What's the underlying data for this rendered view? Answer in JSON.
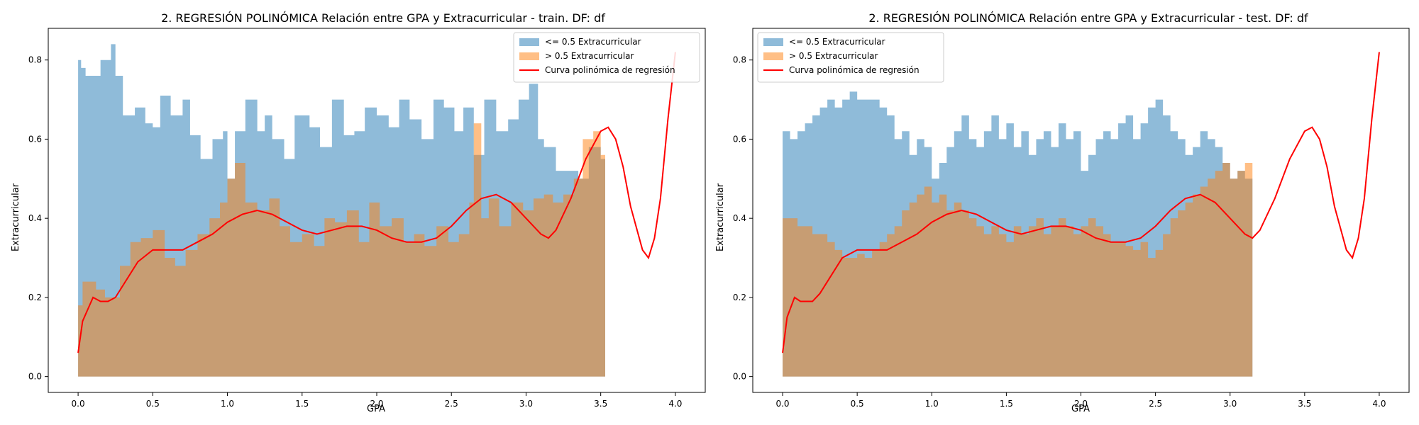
{
  "colors": {
    "low": "#1f77b4",
    "high": "#ff7f0e",
    "curve": "#ff0000",
    "low_alpha": 0.5,
    "high_alpha": 0.5
  },
  "chart_data": [
    {
      "type": "area",
      "title": "2. REGRESIÓN POLINÓMICA Relación entre GPA y Extracurricular - train. DF: df",
      "xlabel": "GPA",
      "ylabel": "Extracurricular",
      "xlim": [
        -0.2,
        4.2
      ],
      "ylim": [
        -0.04,
        0.88
      ],
      "xticks": [
        "0.0",
        "0.5",
        "1.0",
        "1.5",
        "2.0",
        "2.5",
        "3.0",
        "3.5",
        "4.0"
      ],
      "yticks": [
        "0.0",
        "0.2",
        "0.4",
        "0.6",
        "0.8"
      ],
      "grid": false,
      "legend_position": "top-right",
      "legend": [
        "<= 0.5 Extracurricular",
        "> 0.5 Extracurricular",
        "Curva polinómica de regresión"
      ],
      "series": [
        {
          "name": "<= 0.5 Extracurricular",
          "kind": "area",
          "x": [
            0.0,
            0.02,
            0.05,
            0.1,
            0.15,
            0.22,
            0.25,
            0.3,
            0.38,
            0.45,
            0.5,
            0.55,
            0.62,
            0.7,
            0.75,
            0.82,
            0.9,
            0.97,
            1.0,
            1.05,
            1.12,
            1.2,
            1.25,
            1.3,
            1.38,
            1.45,
            1.55,
            1.62,
            1.7,
            1.78,
            1.85,
            1.92,
            2.0,
            2.08,
            2.15,
            2.22,
            2.3,
            2.38,
            2.45,
            2.52,
            2.58,
            2.65,
            2.72,
            2.8,
            2.88,
            2.95,
            3.02,
            3.08,
            3.12,
            3.2,
            3.28,
            3.35,
            3.42,
            3.5,
            3.53
          ],
          "y": [
            0.8,
            0.78,
            0.76,
            0.76,
            0.8,
            0.84,
            0.76,
            0.66,
            0.68,
            0.64,
            0.63,
            0.71,
            0.66,
            0.7,
            0.61,
            0.55,
            0.6,
            0.62,
            0.5,
            0.62,
            0.7,
            0.62,
            0.66,
            0.6,
            0.55,
            0.66,
            0.63,
            0.58,
            0.7,
            0.61,
            0.62,
            0.68,
            0.66,
            0.63,
            0.7,
            0.65,
            0.6,
            0.7,
            0.68,
            0.62,
            0.68,
            0.56,
            0.7,
            0.62,
            0.65,
            0.7,
            0.74,
            0.6,
            0.58,
            0.52,
            0.52,
            0.5,
            0.58,
            0.55,
            0.46
          ]
        },
        {
          "name": "> 0.5 Extracurricular",
          "kind": "area",
          "x": [
            0.0,
            0.03,
            0.06,
            0.12,
            0.18,
            0.22,
            0.28,
            0.35,
            0.42,
            0.5,
            0.58,
            0.65,
            0.72,
            0.8,
            0.88,
            0.95,
            1.0,
            1.05,
            1.12,
            1.2,
            1.28,
            1.35,
            1.42,
            1.5,
            1.58,
            1.65,
            1.72,
            1.8,
            1.88,
            1.95,
            2.02,
            2.1,
            2.18,
            2.25,
            2.32,
            2.4,
            2.48,
            2.55,
            2.62,
            2.65,
            2.7,
            2.75,
            2.82,
            2.9,
            2.98,
            3.05,
            3.12,
            3.18,
            3.25,
            3.32,
            3.38,
            3.45,
            3.5,
            3.53
          ],
          "y": [
            0.18,
            0.24,
            0.24,
            0.22,
            0.2,
            0.2,
            0.28,
            0.34,
            0.35,
            0.37,
            0.3,
            0.28,
            0.32,
            0.36,
            0.4,
            0.44,
            0.5,
            0.54,
            0.44,
            0.42,
            0.45,
            0.38,
            0.34,
            0.36,
            0.33,
            0.4,
            0.39,
            0.42,
            0.34,
            0.44,
            0.38,
            0.4,
            0.34,
            0.36,
            0.33,
            0.38,
            0.34,
            0.36,
            0.44,
            0.64,
            0.4,
            0.45,
            0.38,
            0.44,
            0.42,
            0.45,
            0.46,
            0.44,
            0.46,
            0.5,
            0.6,
            0.62,
            0.56,
            0.56
          ]
        },
        {
          "name": "Curva polinómica de regresión",
          "kind": "line",
          "x": [
            0.0,
            0.03,
            0.1,
            0.15,
            0.2,
            0.25,
            0.3,
            0.4,
            0.5,
            0.6,
            0.7,
            0.8,
            0.9,
            1.0,
            1.1,
            1.2,
            1.3,
            1.4,
            1.5,
            1.6,
            1.7,
            1.8,
            1.9,
            2.0,
            2.1,
            2.2,
            2.3,
            2.4,
            2.5,
            2.6,
            2.7,
            2.8,
            2.9,
            3.0,
            3.1,
            3.15,
            3.2,
            3.3,
            3.4,
            3.5,
            3.55,
            3.6,
            3.65,
            3.7,
            3.78,
            3.82,
            3.86,
            3.9,
            3.95,
            4.0
          ],
          "y": [
            0.06,
            0.14,
            0.2,
            0.19,
            0.19,
            0.2,
            0.23,
            0.29,
            0.32,
            0.32,
            0.32,
            0.34,
            0.36,
            0.39,
            0.41,
            0.42,
            0.41,
            0.39,
            0.37,
            0.36,
            0.37,
            0.38,
            0.38,
            0.37,
            0.35,
            0.34,
            0.34,
            0.35,
            0.38,
            0.42,
            0.45,
            0.46,
            0.44,
            0.4,
            0.36,
            0.35,
            0.37,
            0.45,
            0.55,
            0.62,
            0.63,
            0.6,
            0.53,
            0.43,
            0.32,
            0.3,
            0.35,
            0.45,
            0.65,
            0.82
          ]
        }
      ]
    },
    {
      "type": "area",
      "title": "2. REGRESIÓN POLINÓMICA Relación entre GPA y Extracurricular - test. DF: df",
      "xlabel": "GPA",
      "ylabel": "Extracurricular",
      "xlim": [
        -0.2,
        4.2
      ],
      "ylim": [
        -0.04,
        0.88
      ],
      "xticks": [
        "0.0",
        "0.5",
        "1.0",
        "1.5",
        "2.0",
        "2.5",
        "3.0",
        "3.5",
        "4.0"
      ],
      "yticks": [
        "0.0",
        "0.2",
        "0.4",
        "0.6",
        "0.8"
      ],
      "grid": false,
      "legend_position": "top-left",
      "legend": [
        "<= 0.5 Extracurricular",
        "> 0.5 Extracurricular",
        "Curva polinómica de regresión"
      ],
      "series": [
        {
          "name": "<= 0.5 Extracurricular",
          "kind": "area",
          "x": [
            0.0,
            0.05,
            0.1,
            0.15,
            0.2,
            0.25,
            0.3,
            0.35,
            0.4,
            0.45,
            0.5,
            0.55,
            0.6,
            0.65,
            0.7,
            0.75,
            0.8,
            0.85,
            0.9,
            0.95,
            1.0,
            1.05,
            1.1,
            1.15,
            1.2,
            1.25,
            1.3,
            1.35,
            1.4,
            1.45,
            1.5,
            1.55,
            1.6,
            1.65,
            1.7,
            1.75,
            1.8,
            1.85,
            1.9,
            1.95,
            2.0,
            2.05,
            2.1,
            2.15,
            2.2,
            2.25,
            2.3,
            2.35,
            2.4,
            2.45,
            2.5,
            2.55,
            2.6,
            2.65,
            2.7,
            2.75,
            2.8,
            2.85,
            2.9,
            2.95,
            3.0,
            3.05,
            3.1,
            3.15
          ],
          "y": [
            0.62,
            0.6,
            0.62,
            0.64,
            0.66,
            0.68,
            0.7,
            0.68,
            0.7,
            0.72,
            0.7,
            0.7,
            0.7,
            0.68,
            0.66,
            0.6,
            0.62,
            0.56,
            0.6,
            0.58,
            0.5,
            0.54,
            0.58,
            0.62,
            0.66,
            0.6,
            0.58,
            0.62,
            0.66,
            0.6,
            0.64,
            0.58,
            0.62,
            0.56,
            0.6,
            0.62,
            0.58,
            0.64,
            0.6,
            0.62,
            0.52,
            0.56,
            0.6,
            0.62,
            0.6,
            0.64,
            0.66,
            0.6,
            0.64,
            0.68,
            0.7,
            0.66,
            0.62,
            0.6,
            0.56,
            0.58,
            0.62,
            0.6,
            0.58,
            0.54,
            0.5,
            0.52,
            0.5,
            0.48
          ]
        },
        {
          "name": "> 0.5 Extracurricular",
          "kind": "area",
          "x": [
            0.0,
            0.05,
            0.1,
            0.15,
            0.2,
            0.25,
            0.3,
            0.35,
            0.4,
            0.45,
            0.5,
            0.55,
            0.6,
            0.65,
            0.7,
            0.75,
            0.8,
            0.85,
            0.9,
            0.95,
            1.0,
            1.05,
            1.1,
            1.15,
            1.2,
            1.25,
            1.3,
            1.35,
            1.4,
            1.45,
            1.5,
            1.55,
            1.6,
            1.65,
            1.7,
            1.75,
            1.8,
            1.85,
            1.9,
            1.95,
            2.0,
            2.05,
            2.1,
            2.15,
            2.2,
            2.25,
            2.3,
            2.35,
            2.4,
            2.45,
            2.5,
            2.55,
            2.6,
            2.65,
            2.7,
            2.75,
            2.8,
            2.85,
            2.9,
            2.95,
            3.0,
            3.05,
            3.1,
            3.15
          ],
          "y": [
            0.4,
            0.4,
            0.38,
            0.38,
            0.36,
            0.36,
            0.34,
            0.32,
            0.3,
            0.3,
            0.31,
            0.3,
            0.32,
            0.34,
            0.36,
            0.38,
            0.42,
            0.44,
            0.46,
            0.48,
            0.44,
            0.46,
            0.42,
            0.44,
            0.42,
            0.4,
            0.38,
            0.36,
            0.38,
            0.36,
            0.34,
            0.38,
            0.36,
            0.38,
            0.4,
            0.36,
            0.38,
            0.4,
            0.38,
            0.36,
            0.38,
            0.4,
            0.38,
            0.36,
            0.34,
            0.34,
            0.33,
            0.32,
            0.34,
            0.3,
            0.32,
            0.36,
            0.4,
            0.42,
            0.44,
            0.46,
            0.48,
            0.5,
            0.52,
            0.54,
            0.5,
            0.52,
            0.54,
            0.54
          ]
        },
        {
          "name": "Curva polinómica de regresión",
          "kind": "line",
          "x": [
            0.0,
            0.03,
            0.08,
            0.12,
            0.16,
            0.2,
            0.25,
            0.3,
            0.4,
            0.5,
            0.6,
            0.7,
            0.8,
            0.9,
            1.0,
            1.1,
            1.2,
            1.3,
            1.4,
            1.5,
            1.6,
            1.7,
            1.8,
            1.9,
            2.0,
            2.1,
            2.2,
            2.3,
            2.4,
            2.5,
            2.6,
            2.7,
            2.8,
            2.9,
            3.0,
            3.1,
            3.15,
            3.2,
            3.3,
            3.4,
            3.5,
            3.55,
            3.6,
            3.65,
            3.7,
            3.78,
            3.82,
            3.86,
            3.9,
            3.95,
            4.0
          ],
          "y": [
            0.06,
            0.15,
            0.2,
            0.19,
            0.19,
            0.19,
            0.21,
            0.24,
            0.3,
            0.32,
            0.32,
            0.32,
            0.34,
            0.36,
            0.39,
            0.41,
            0.42,
            0.41,
            0.39,
            0.37,
            0.36,
            0.37,
            0.38,
            0.38,
            0.37,
            0.35,
            0.34,
            0.34,
            0.35,
            0.38,
            0.42,
            0.45,
            0.46,
            0.44,
            0.4,
            0.36,
            0.35,
            0.37,
            0.45,
            0.55,
            0.62,
            0.63,
            0.6,
            0.53,
            0.43,
            0.32,
            0.3,
            0.35,
            0.45,
            0.65,
            0.82
          ]
        }
      ]
    }
  ]
}
